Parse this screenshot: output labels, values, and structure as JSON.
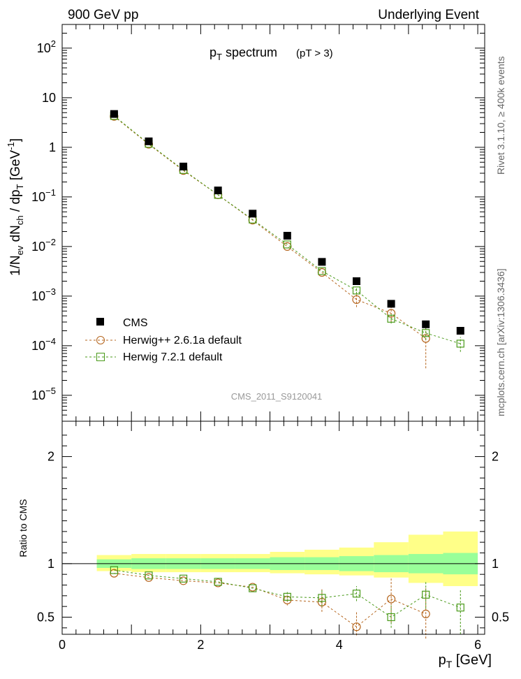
{
  "header": {
    "left": "900 GeV pp",
    "right": "Underlying Event"
  },
  "sidebar": {
    "upper": "Rivet 3.1.10, ≥ 400k events",
    "lower": "mcplots.cern.ch [arXiv:1306.3436]"
  },
  "chart_data": [
    {
      "type": "scatter",
      "title": "p_T spectrum",
      "title_suffix": "(pT > 3)",
      "watermark": "CMS_2011_S9120041",
      "xlabel": "p_T [GeV]",
      "ylabel": "1/N_ev dN_ch / dp_T [GeV^-1]",
      "xlim": [
        0,
        6.1
      ],
      "ylim": [
        3e-06,
        300
      ],
      "yscale": "log",
      "x_ticks": [
        "0",
        "2",
        "4",
        "6"
      ],
      "y_ticks": [
        "10^-5",
        "10^-4",
        "10^-3",
        "10^-2",
        "10^-1",
        "1",
        "10",
        "10^2"
      ],
      "legend": {
        "position": "bottom-left"
      },
      "x": [
        0.75,
        1.25,
        1.75,
        2.25,
        2.75,
        3.25,
        3.75,
        4.25,
        4.75,
        5.25,
        5.75
      ],
      "series": [
        {
          "name": "CMS",
          "color": "#000000",
          "marker": "filled-square",
          "values": [
            4.7,
            1.32,
            0.41,
            0.135,
            0.046,
            0.0165,
            0.0049,
            0.002,
            0.0007,
            0.00027,
            0.0002
          ]
        },
        {
          "name": "Herwig++ 2.6.1a default",
          "color": "#b5651d",
          "marker": "open-circle",
          "values": [
            4.2,
            1.15,
            0.34,
            0.11,
            0.034,
            0.01,
            0.003,
            0.00085,
            0.00045,
            0.00014,
            null
          ],
          "err_low": [
            null,
            null,
            null,
            null,
            null,
            null,
            null,
            0.0006,
            0.0003,
            3.5e-05,
            null
          ],
          "err_high": [
            null,
            null,
            null,
            null,
            null,
            null,
            null,
            0.00115,
            0.0006,
            0.00025,
            null
          ]
        },
        {
          "name": "Herwig 7.2.1 default",
          "color": "#4a9a1a",
          "marker": "open-square",
          "values": [
            4.3,
            1.18,
            0.35,
            0.11,
            0.035,
            0.011,
            0.0032,
            0.0013,
            0.00035,
            0.00018,
            0.00011
          ],
          "err_low": [
            null,
            null,
            null,
            null,
            null,
            null,
            null,
            0.0011,
            0.00028,
            0.00013,
            7.5e-05
          ],
          "err_high": [
            null,
            null,
            null,
            null,
            null,
            null,
            null,
            0.00155,
            0.00043,
            0.00025,
            0.00015
          ]
        }
      ]
    },
    {
      "type": "scatter",
      "xlabel": "p_T [GeV]",
      "ylabel": "Ratio to CMS",
      "xlim": [
        0,
        6.1
      ],
      "ylim": [
        0.34,
        2.33
      ],
      "y_ticks": [
        "0.5",
        "1",
        "2"
      ],
      "x_ticks": [
        "0",
        "2",
        "4",
        "6"
      ],
      "x": [
        0.75,
        1.25,
        1.75,
        2.25,
        2.75,
        3.25,
        3.75,
        4.25,
        4.75,
        5.25,
        5.75
      ],
      "bin_edges": [
        0.5,
        1.0,
        1.5,
        2.0,
        2.5,
        3.0,
        3.5,
        4.0,
        4.5,
        5.0,
        5.5,
        6.0
      ],
      "band_inner": {
        "color": "#99ff99",
        "low": [
          0.96,
          0.95,
          0.95,
          0.95,
          0.95,
          0.94,
          0.94,
          0.93,
          0.92,
          0.91,
          0.9
        ],
        "high": [
          1.04,
          1.05,
          1.05,
          1.05,
          1.05,
          1.06,
          1.06,
          1.07,
          1.08,
          1.09,
          1.1
        ]
      },
      "band_outer": {
        "color": "#ffff88",
        "low": [
          0.93,
          0.92,
          0.92,
          0.92,
          0.92,
          0.91,
          0.9,
          0.89,
          0.87,
          0.82,
          0.79
        ],
        "high": [
          1.08,
          1.09,
          1.09,
          1.09,
          1.09,
          1.11,
          1.13,
          1.15,
          1.2,
          1.27,
          1.3
        ]
      },
      "series": [
        {
          "name": "Herwig++ 2.6.1a default",
          "color": "#b5651d",
          "marker": "open-circle",
          "values": [
            0.91,
            0.87,
            0.84,
            0.82,
            0.78,
            0.66,
            0.64,
            0.41,
            0.67,
            0.53,
            null
          ],
          "err_low": [
            null,
            null,
            null,
            null,
            null,
            0.61,
            0.55,
            0.33,
            0.45,
            0.3,
            null
          ],
          "err_high": [
            null,
            null,
            null,
            null,
            null,
            0.71,
            0.76,
            0.55,
            0.86,
            0.77,
            null
          ]
        },
        {
          "name": "Herwig 7.2.1 default",
          "color": "#4a9a1a",
          "marker": "open-square",
          "values": [
            0.94,
            0.89,
            0.86,
            0.83,
            0.77,
            0.69,
            0.68,
            0.72,
            0.5,
            0.71,
            0.59
          ],
          "err_low": [
            null,
            null,
            null,
            null,
            null,
            0.65,
            0.6,
            0.65,
            0.4,
            0.58,
            0.34
          ],
          "err_high": [
            null,
            null,
            null,
            null,
            null,
            0.74,
            0.76,
            0.79,
            0.61,
            0.84,
            0.76
          ]
        }
      ]
    }
  ]
}
